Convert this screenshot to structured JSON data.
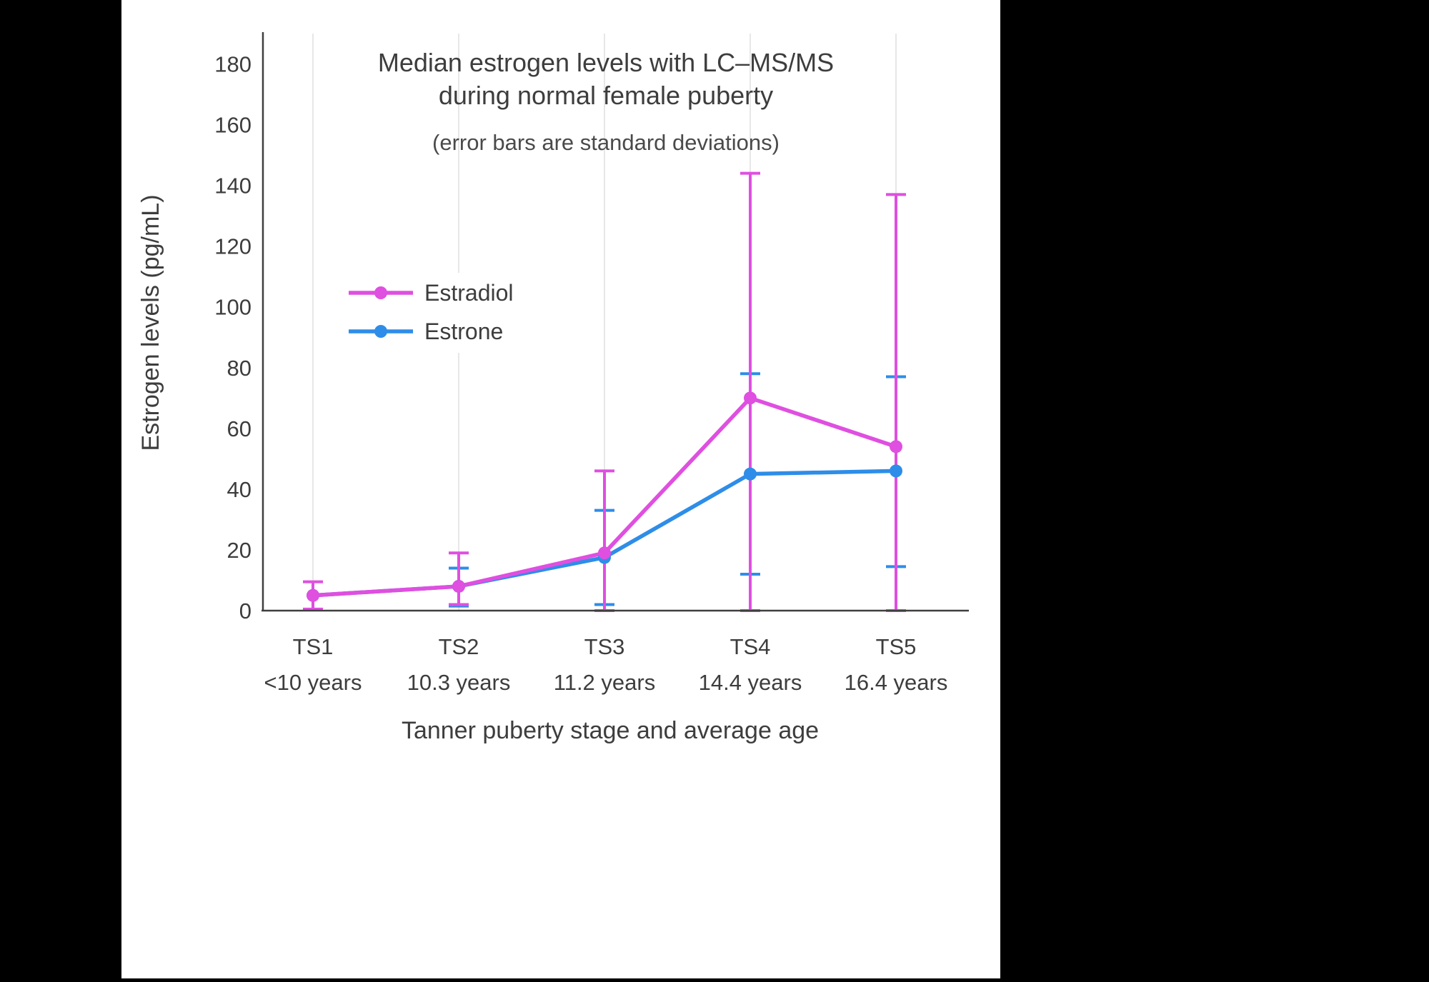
{
  "frame": {
    "background": "#000000",
    "panel_background": "#ffffff"
  },
  "chart": {
    "title_line1": "Median estrogen levels with LC–MS/MS",
    "title_line2": "during normal female puberty",
    "subtitle": "(error bars are standard deviations)",
    "xlabel": "Tanner puberty stage and average age",
    "ylabel": "Estrogen levels (pg/mL)"
  },
  "chart_data": {
    "type": "line",
    "title": "Median estrogen levels with LC–MS/MS during normal female puberty",
    "subtitle": "(error bars are standard deviations)",
    "xlabel": "Tanner puberty stage and average age",
    "ylabel": "Estrogen levels (pg/mL)",
    "categories": [
      "TS1",
      "TS2",
      "TS3",
      "TS4",
      "TS5"
    ],
    "category_ages": [
      "<10 years",
      "10.3 years",
      "11.2 years",
      "14.4 years",
      "16.4 years"
    ],
    "yticks": [
      0,
      20,
      40,
      60,
      80,
      100,
      120,
      140,
      160,
      180
    ],
    "ylim": [
      0,
      190
    ],
    "grid": "vertical",
    "legend_position": "inside-upper-left",
    "error_bars": "standard deviations",
    "series": [
      {
        "name": "Estradiol",
        "color": "#DF4FE0",
        "values": [
          5,
          8,
          19,
          70,
          54
        ],
        "err_low": [
          0.5,
          2,
          0,
          0,
          0
        ],
        "err_high": [
          9.5,
          19,
          46,
          144,
          137
        ]
      },
      {
        "name": "Estrone",
        "color": "#2E8DE8",
        "values": [
          5,
          8,
          17.5,
          45,
          46
        ],
        "err_low": [
          null,
          1.5,
          2,
          12,
          14.5
        ],
        "err_high": [
          null,
          14,
          33,
          78,
          77
        ]
      }
    ]
  }
}
